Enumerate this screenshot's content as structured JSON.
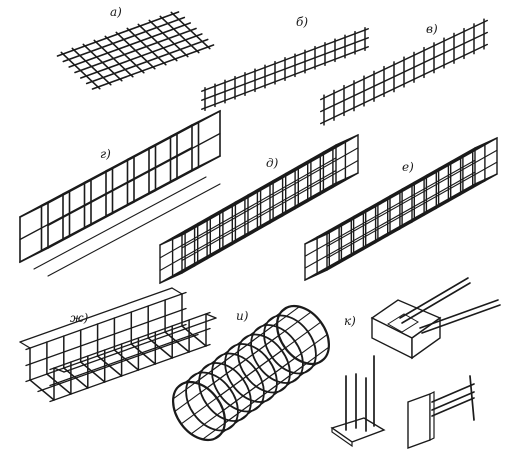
{
  "figure": {
    "panels": [
      {
        "id": "a",
        "label": "а)",
        "icon": "flat-mesh-icon"
      },
      {
        "id": "b",
        "label": "б)",
        "icon": "flat-frame-icon"
      },
      {
        "id": "v",
        "label": "в)",
        "icon": "flat-frame-icon"
      },
      {
        "id": "g",
        "label": "г)",
        "icon": "spatial-cage-icon"
      },
      {
        "id": "d",
        "label": "д)",
        "icon": "spatial-cage-icon"
      },
      {
        "id": "e",
        "label": "е)",
        "icon": "spatial-cage-icon"
      },
      {
        "id": "zh",
        "label": "ж)",
        "icon": "trough-cage-icon"
      },
      {
        "id": "i",
        "label": "и)",
        "icon": "cylindrical-cage-icon"
      },
      {
        "id": "k",
        "label": "к)",
        "icon": "embedded-parts-icon"
      }
    ]
  }
}
